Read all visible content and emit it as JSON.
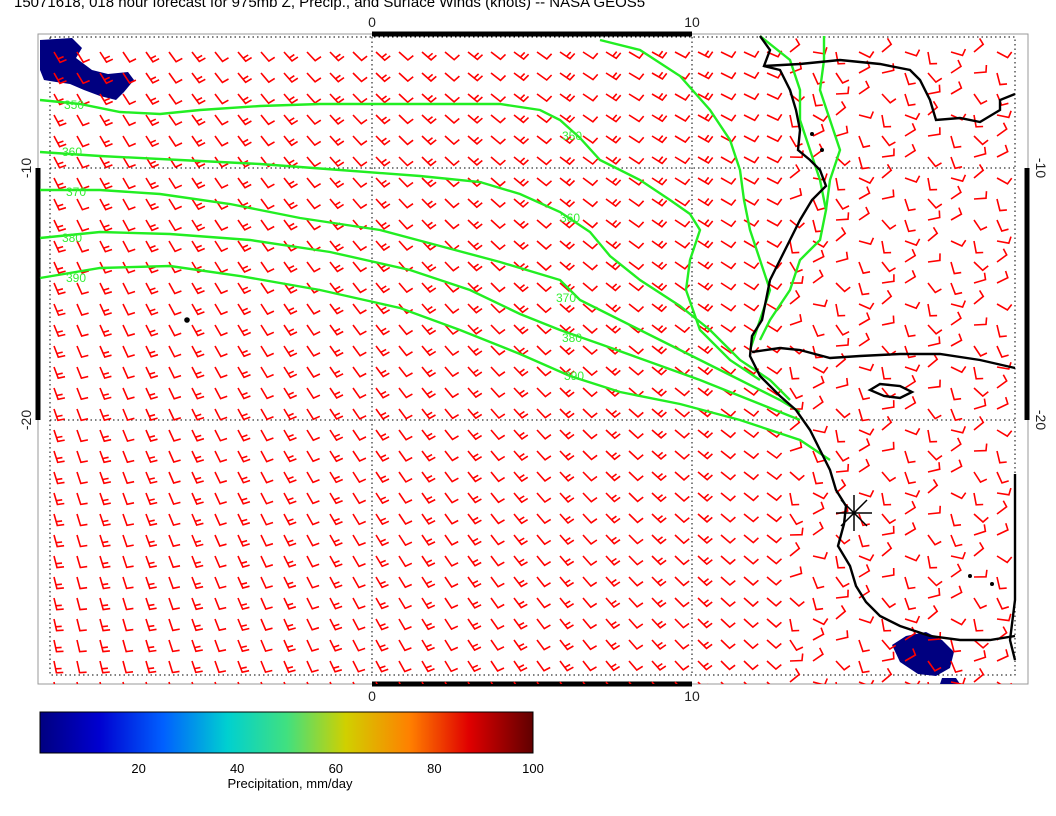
{
  "title": "15071618, 018 hour forecast for 975mb Z, Precip., and Surface Winds (knots) -- NASA GEOS5",
  "axes": {
    "x_ticks": [
      "0",
      "10"
    ],
    "y_ticks": [
      "-10",
      "-20"
    ]
  },
  "contours": {
    "color": "#22ee22",
    "labels": [
      "350",
      "360",
      "370",
      "380",
      "390"
    ]
  },
  "colorbar": {
    "title": "Precipitation, mm/day",
    "ticks": [
      "20",
      "40",
      "60",
      "80",
      "100"
    ],
    "range": [
      0,
      100
    ]
  },
  "colors": {
    "wind_barbs": "#ff0000",
    "coastline": "#000000",
    "precip_max_region": "#000080"
  },
  "icons": {
    "marker": "asterisk-marker-icon"
  }
}
